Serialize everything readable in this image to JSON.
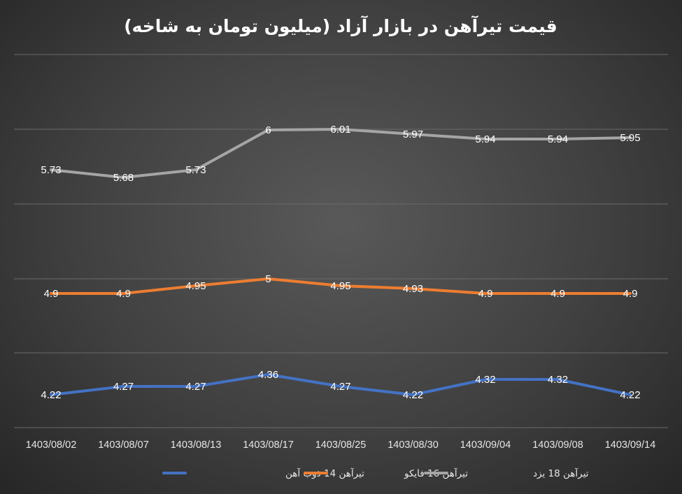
{
  "chart_data": {
    "type": "line",
    "title": "قیمت تیرآهن در بازار آزاد (میلیون تومان به شاخه)",
    "categories": [
      "1403/08/02",
      "1403/08/07",
      "1403/08/13",
      "1403/08/17",
      "1403/08/25",
      "1403/08/30",
      "1403/09/04",
      "1403/09/08",
      "1403/09/14"
    ],
    "series": [
      {
        "name": "تیرآهن 14 ذوب آهن",
        "color": "#4472C4",
        "values": [
          4.22,
          4.27,
          4.27,
          4.36,
          4.27,
          4.22,
          4.32,
          4.32,
          4.22
        ],
        "labels": [
          "4.22",
          "4.27",
          "4.27",
          "4.36",
          "4.27",
          "4.22",
          "4.32",
          "4.32",
          "4.22"
        ]
      },
      {
        "name": "تیرآهن 16 فایکو",
        "color": "#ED7D31",
        "values": [
          4.9,
          4.9,
          4.95,
          5,
          4.95,
          4.93,
          4.9,
          4.9,
          4.9
        ],
        "labels": [
          "4.9",
          "4.9",
          "4.95",
          "5",
          "4.95",
          "4.93",
          "4.9",
          "4.9",
          "4.9"
        ]
      },
      {
        "name": "تیرآهن 18 یزد",
        "color": "#A5A5A5",
        "values": [
          5.73,
          5.68,
          5.73,
          6,
          6.01,
          5.97,
          5.94,
          5.94,
          5.95
        ],
        "labels": [
          "5.73",
          "5.68",
          "5.73",
          "6",
          "6.01",
          "5.97",
          "5.94",
          "5.94",
          "5.95"
        ]
      }
    ],
    "legend": "bottom",
    "grid": true,
    "xlabel": "",
    "ylabel": ""
  }
}
